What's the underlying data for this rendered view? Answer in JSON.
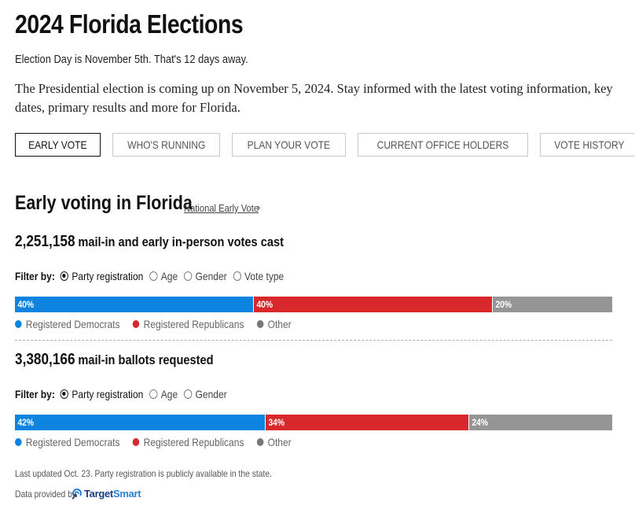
{
  "header": {
    "title": "2024 Florida Elections",
    "subtitle": "Election Day is November 5th. That's 12 days away.",
    "intro": "The Presidential election is coming up on November 5, 2024. Stay informed with the latest voting information, key dates, primary results and more for Florida."
  },
  "tabs": [
    {
      "label": "EARLY VOTE",
      "active": true
    },
    {
      "label": "WHO'S RUNNING",
      "active": false
    },
    {
      "label": "PLAN YOUR VOTE",
      "active": false
    },
    {
      "label": "CURRENT OFFICE HOLDERS",
      "active": false
    },
    {
      "label": "VOTE HISTORY",
      "active": false
    }
  ],
  "early_voting": {
    "title": "Early voting in Florida",
    "national_link": "National Early Vote",
    "national_link_icon": "chevron-right-icon",
    "chevron_glyph": "›",
    "filter_label": "Filter by:",
    "legend": [
      {
        "label": "Registered Democrats",
        "color": "#0d84e0"
      },
      {
        "label": "Registered Republicans",
        "color": "#d9282b"
      },
      {
        "label": "Other",
        "color": "#777777"
      }
    ],
    "votes_cast": {
      "count": "2,251,158",
      "label": "mail-in and early in-person votes cast",
      "filters": [
        {
          "label": "Party registration",
          "checked": true
        },
        {
          "label": "Age",
          "checked": false
        },
        {
          "label": "Gender",
          "checked": false
        },
        {
          "label": "Vote type",
          "checked": false
        }
      ],
      "segments": [
        {
          "party": "Registered Democrats",
          "percent": 40,
          "label": "40%",
          "color": "#0d84e0"
        },
        {
          "party": "Registered Republicans",
          "percent": 40,
          "label": "40%",
          "color": "#d9282b"
        },
        {
          "party": "Other",
          "percent": 20,
          "label": "20%",
          "color": "#959595"
        }
      ]
    },
    "ballots_requested": {
      "count": "3,380,166",
      "label": "mail-in ballots requested",
      "filters": [
        {
          "label": "Party registration",
          "checked": true
        },
        {
          "label": "Age",
          "checked": false
        },
        {
          "label": "Gender",
          "checked": false
        }
      ],
      "segments": [
        {
          "party": "Registered Democrats",
          "percent": 42,
          "label": "42%",
          "color": "#0d84e0"
        },
        {
          "party": "Registered Republicans",
          "percent": 34,
          "label": "34%",
          "color": "#d9282b"
        },
        {
          "party": "Other",
          "percent": 24,
          "label": "24%",
          "color": "#959595"
        }
      ]
    },
    "footnote": "Last updated Oct. 23. Party registration is publicly available in the state.",
    "provider_label": "Data provided by",
    "provider_name_a": "Target",
    "provider_name_b": "Smart"
  }
}
